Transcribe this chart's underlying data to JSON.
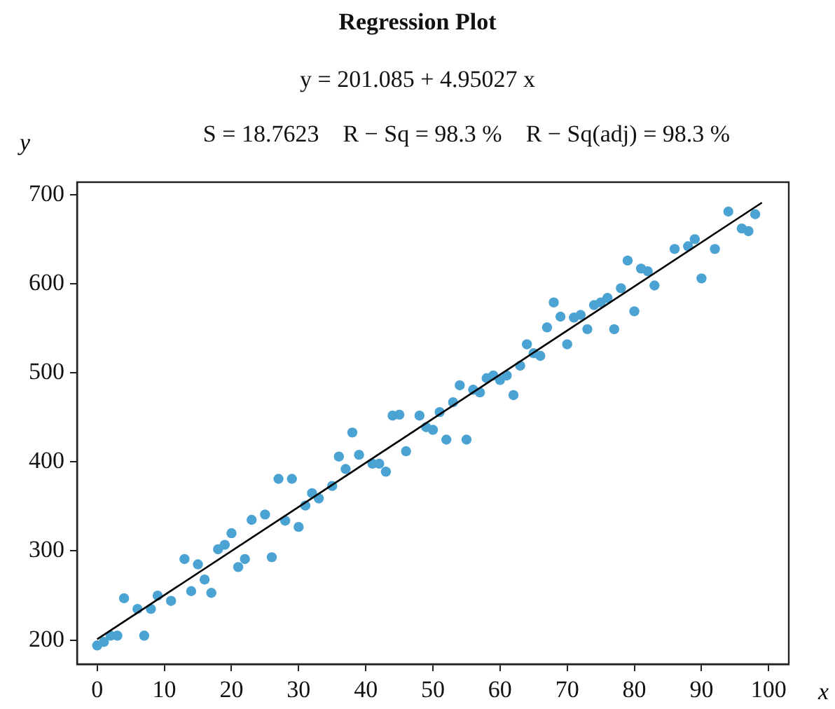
{
  "chart_data": {
    "type": "scatter",
    "title": "Regression Plot",
    "subtitle": "y = 201.085 + 4.95027 x",
    "annotations": [
      "S = 18.7623    R − Sq = 98.3 %    R − Sq(adj) = 98.3 %"
    ],
    "xlabel": "x",
    "ylabel": "y",
    "xlim": [
      -3,
      103
    ],
    "ylim": [
      173,
      714
    ],
    "xticks": [
      0,
      10,
      20,
      30,
      40,
      50,
      60,
      70,
      80,
      90,
      100
    ],
    "yticks": [
      200,
      300,
      400,
      500,
      600,
      700
    ],
    "grid": false,
    "legend": false,
    "series": [
      {
        "marker": "circle",
        "color": "#4ba3d3",
        "x": [
          0,
          1,
          2,
          3,
          4,
          6,
          7,
          8,
          9,
          11,
          13,
          14,
          15,
          16,
          17,
          18,
          19,
          20,
          21,
          22,
          23,
          25,
          26,
          27,
          28,
          29,
          30,
          31,
          32,
          33,
          35,
          36,
          37,
          38,
          39,
          41,
          42,
          43,
          44,
          45,
          46,
          48,
          49,
          50,
          51,
          52,
          53,
          54,
          55,
          56,
          57,
          58,
          59,
          60,
          61,
          62,
          63,
          64,
          65,
          66,
          67,
          68,
          69,
          70,
          71,
          72,
          73,
          74,
          75,
          76,
          77,
          78,
          79,
          80,
          81,
          82,
          83,
          86,
          88,
          89,
          90,
          92,
          94,
          96,
          97,
          98
        ],
        "values": [
          194,
          198,
          205,
          205,
          247,
          235,
          205,
          235,
          250,
          244,
          291,
          255,
          285,
          268,
          253,
          302,
          307,
          320,
          282,
          291,
          335,
          341,
          293,
          381,
          334,
          381,
          327,
          351,
          365,
          359,
          373,
          406,
          392,
          433,
          408,
          398,
          398,
          389,
          452,
          453,
          412,
          452,
          439,
          436,
          456,
          425,
          467,
          486,
          425,
          481,
          478,
          494,
          497,
          492,
          497,
          475,
          508,
          532,
          522,
          519,
          551,
          579,
          563,
          532,
          562,
          565,
          549,
          576,
          579,
          584,
          549,
          595,
          626,
          569,
          617,
          614,
          598,
          639,
          642,
          650,
          606,
          639,
          681,
          662,
          659,
          678
        ]
      },
      {
        "type": "line",
        "marker": "none",
        "color": "#000000",
        "x": [
          0,
          99
        ],
        "values": [
          201,
          691
        ]
      }
    ]
  }
}
